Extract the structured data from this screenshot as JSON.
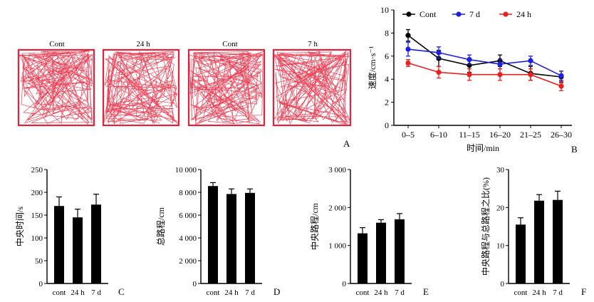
{
  "tracks": {
    "labels": [
      "Cont",
      "24 h",
      "Cont",
      "7 h"
    ],
    "color": "#e8203a"
  },
  "panels": {
    "A": "A",
    "B": "B",
    "C": "C",
    "D": "D",
    "E": "E",
    "F": "F"
  },
  "chart_data": [
    {
      "type": "line",
      "id": "B",
      "categories": [
        "0–5",
        "6–10",
        "11–15",
        "16–20",
        "21–25",
        "26–30"
      ],
      "xlabel": "时间/min",
      "ylabel": "速度/cm·s⁻¹",
      "ylim": [
        0,
        10
      ],
      "yticks": [
        0,
        2,
        4,
        6,
        8,
        10
      ],
      "legend_position": "top",
      "series": [
        {
          "name": "Cont",
          "color": "#000000",
          "values": [
            7.8,
            5.8,
            5.2,
            5.6,
            4.5,
            4.2
          ],
          "errors": [
            0.5,
            0.7,
            0.6,
            0.5,
            0.6,
            0.5
          ]
        },
        {
          "name": "7 d",
          "color": "#1f1fe0",
          "values": [
            6.6,
            6.3,
            5.7,
            5.3,
            5.6,
            4.3
          ],
          "errors": [
            0.6,
            0.5,
            0.4,
            0.4,
            0.4,
            0.4
          ]
        },
        {
          "name": "24 h",
          "color": "#e82020",
          "values": [
            5.4,
            4.6,
            4.4,
            4.4,
            4.4,
            3.4
          ],
          "errors": [
            0.3,
            0.5,
            0.5,
            0.5,
            0.5,
            0.4
          ]
        }
      ]
    },
    {
      "type": "bar",
      "id": "C",
      "categories": [
        "cont",
        "24 h",
        "7 d"
      ],
      "values": [
        170,
        145,
        173
      ],
      "errors": [
        20,
        18,
        23
      ],
      "ylabel": "中央时间/s",
      "ylim": [
        0,
        250
      ],
      "yticks": [
        0,
        50,
        100,
        150,
        200,
        250
      ],
      "ytick_labels": [
        "0",
        "50",
        "100",
        "150",
        "200",
        "250"
      ]
    },
    {
      "type": "bar",
      "id": "D",
      "categories": [
        "cont",
        "24 h",
        "7 d"
      ],
      "values": [
        8550,
        7850,
        7950
      ],
      "errors": [
        300,
        450,
        350
      ],
      "ylabel": "总路程/cm",
      "ylim": [
        0,
        10000
      ],
      "yticks": [
        0,
        2000,
        4000,
        6000,
        8000,
        10000
      ],
      "ytick_labels": [
        "0",
        "2 000",
        "4 000",
        "6 000",
        "8 000",
        "10 000"
      ]
    },
    {
      "type": "bar",
      "id": "E",
      "categories": [
        "cont",
        "24 h",
        "7 d"
      ],
      "values": [
        1320,
        1600,
        1690
      ],
      "errors": [
        150,
        80,
        150
      ],
      "ylabel": "中央路程/cm",
      "ylim": [
        0,
        3000
      ],
      "yticks": [
        0,
        1000,
        2000,
        3000
      ],
      "ytick_labels": [
        "0",
        "1 000",
        "2 000",
        "3 000"
      ]
    },
    {
      "type": "bar",
      "id": "F",
      "categories": [
        "cont",
        "24 h",
        "7 d"
      ],
      "values": [
        15.5,
        21.8,
        22.0
      ],
      "errors": [
        1.8,
        1.6,
        2.3
      ],
      "ylabel": "中央路程与总路程之比(%)",
      "ylim": [
        0,
        30
      ],
      "yticks": [
        0,
        10,
        20,
        30
      ],
      "ytick_labels": [
        "0",
        "10",
        "20",
        "30"
      ]
    }
  ]
}
